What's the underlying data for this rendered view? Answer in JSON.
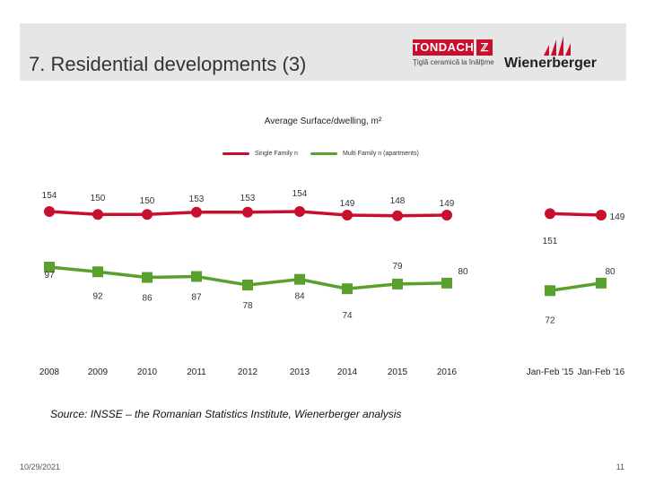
{
  "header": {
    "title": "7. Residential developments (3)",
    "logo_tondach": {
      "name": "TONDACH",
      "tagline": "Ţiglă ceramică la înălţime"
    },
    "logo_wienerberger": {
      "name": "Wienerberger"
    },
    "background": "#e6e6e6"
  },
  "chart_data": {
    "type": "line",
    "title": "Average Surface/dwelling, m²",
    "categories": [
      "2008",
      "2009",
      "2010",
      "2011",
      "2012",
      "2013",
      "2014",
      "2015",
      "2016",
      "Jan-Feb '15",
      "Jan-Feb '16"
    ],
    "series": [
      {
        "name": "Single Family n",
        "color": "#c8102e",
        "labels": [
          "154",
          "150",
          "150",
          "153",
          "153",
          "154",
          "149",
          "148",
          "149",
          "",
          "149"
        ],
        "values": [
          154,
          150,
          150,
          153,
          153,
          154,
          149,
          148,
          149,
          151,
          149
        ]
      },
      {
        "name": "Multi Family n (apartments)",
        "color": "#5aa02c",
        "labels": [
          "97",
          "92",
          "86",
          "87",
          "78",
          "84",
          "74",
          "79",
          "80",
          "72",
          "80"
        ],
        "values": [
          97,
          92,
          86,
          87,
          78,
          84,
          74,
          79,
          80,
          72,
          80
        ]
      }
    ],
    "extra_labels": [
      "151"
    ],
    "legend_position": "top"
  },
  "footer": {
    "source": "Source: INSSE – the Romanian Statistics Institute, Wienerberger analysis",
    "date": "10/29/2021",
    "page": "11"
  }
}
